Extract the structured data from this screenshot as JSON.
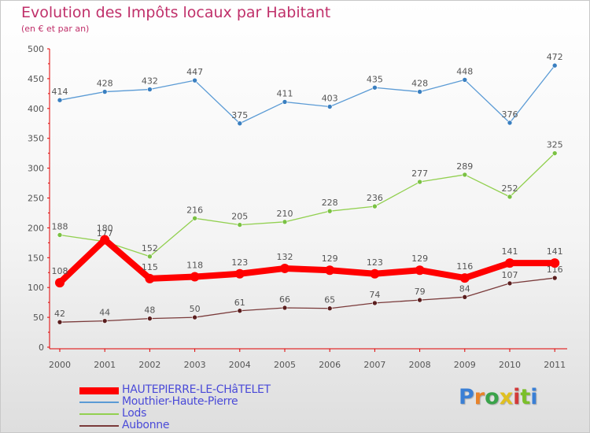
{
  "title": "Evolution des Impôts locaux par Habitant",
  "subtitle": "(en € et par an)",
  "logo": {
    "text": "Proxiti",
    "colors": [
      "#3a7fd5",
      "#e8832a",
      "#3aa34a",
      "#e0c020",
      "#d23a3a",
      "#7bbf2a",
      "#3a7fd5"
    ]
  },
  "chart_data": {
    "type": "line",
    "x": [
      "2000",
      "2001",
      "2002",
      "2003",
      "2004",
      "2005",
      "2006",
      "2007",
      "2008",
      "2009",
      "2010",
      "2011"
    ],
    "ylim": [
      0,
      500
    ],
    "yticks": [
      0,
      50,
      100,
      150,
      200,
      250,
      300,
      350,
      400,
      450,
      500
    ],
    "grid": false,
    "legend_position": "bottom",
    "series": [
      {
        "name": "Mouthier-Haute-Pierre",
        "color": "#5b9bd5",
        "marker": "#3a7fc0",
        "values": [
          414,
          428,
          432,
          447,
          375,
          411,
          403,
          435,
          428,
          448,
          376,
          472
        ]
      },
      {
        "name": "Lods",
        "color": "#92d050",
        "marker": "#7ac143",
        "values": [
          188,
          177,
          152,
          216,
          205,
          210,
          228,
          236,
          277,
          289,
          252,
          325
        ]
      },
      {
        "name": "Aubonne",
        "color": "#7a3a3a",
        "marker": "#5a1e1e",
        "values": [
          42,
          44,
          48,
          50,
          61,
          66,
          65,
          74,
          79,
          84,
          107,
          116
        ]
      },
      {
        "name": "HAUTEPIERRE-LE-CHâTELET",
        "color": "#ff0000",
        "marker": "#ff0000",
        "bold": true,
        "values": [
          108,
          180,
          115,
          118,
          123,
          132,
          129,
          123,
          129,
          116,
          141,
          141
        ]
      }
    ],
    "legend_order": [
      "HAUTEPIERRE-LE-CHâTELET",
      "Mouthier-Haute-Pierre",
      "Lods",
      "Aubonne"
    ]
  }
}
